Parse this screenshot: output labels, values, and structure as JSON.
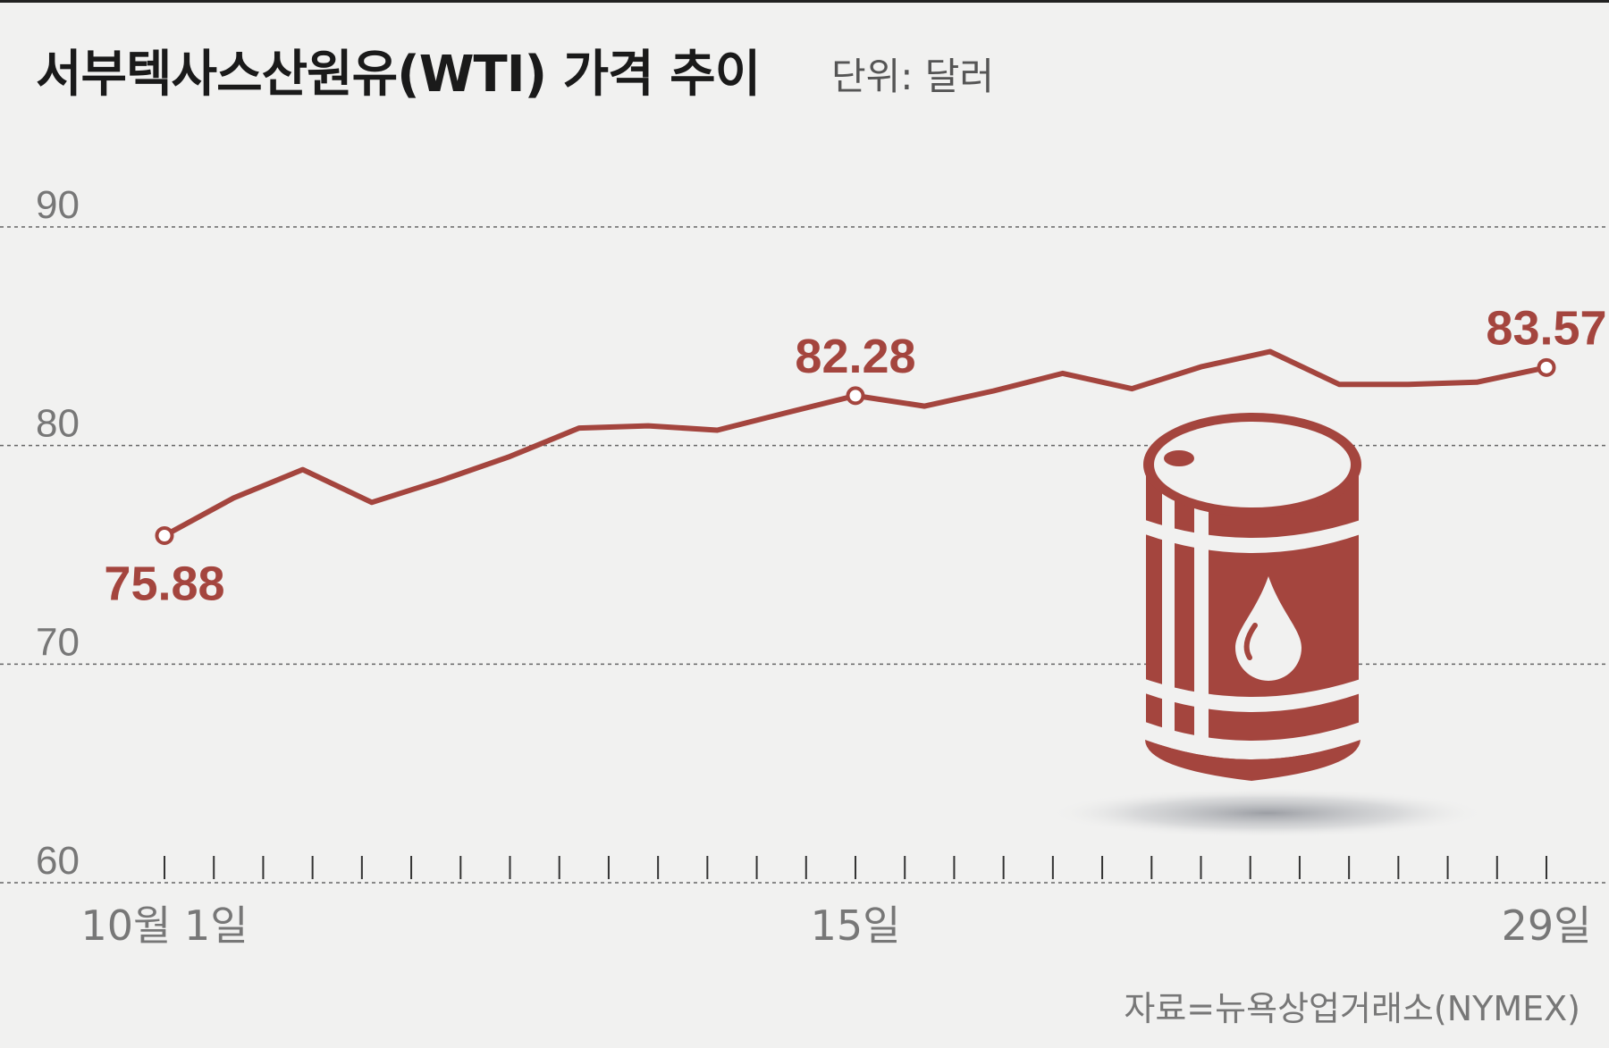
{
  "header": {
    "title": "서부텍사스산원유(WTI) 가격 추이",
    "unit": "단위: 달러"
  },
  "footer": {
    "source": "자료=뉴욕상업거래소(NYMEX)"
  },
  "colors": {
    "line": "#a4453e",
    "barrel": "#a4453e",
    "background": "#f1f1f0"
  },
  "chart_data": {
    "type": "line",
    "title": "서부텍사스산원유(WTI) 가격 추이",
    "ylabel": "단위: 달러",
    "xlabel": "",
    "ylim": [
      60,
      90
    ],
    "yticks": [
      60,
      70,
      80,
      90
    ],
    "xticks": [
      {
        "index": 0,
        "label": "10월 1일"
      },
      {
        "index": 14,
        "label": "15일"
      },
      {
        "index": 28,
        "label": "29일"
      }
    ],
    "x_count": 29,
    "grid": true,
    "series": [
      {
        "points": [
          {
            "i": 0,
            "v": 75.88
          },
          {
            "i": 1.4,
            "v": 77.6
          },
          {
            "i": 2.8,
            "v": 78.9
          },
          {
            "i": 4.2,
            "v": 77.4
          },
          {
            "i": 5.6,
            "v": 78.4
          },
          {
            "i": 7.0,
            "v": 79.5
          },
          {
            "i": 8.4,
            "v": 80.8
          },
          {
            "i": 9.8,
            "v": 80.9
          },
          {
            "i": 11.2,
            "v": 80.7
          },
          {
            "i": 12.6,
            "v": 81.5
          },
          {
            "i": 14.0,
            "v": 82.28
          },
          {
            "i": 15.4,
            "v": 81.8
          },
          {
            "i": 16.8,
            "v": 82.5
          },
          {
            "i": 18.2,
            "v": 83.3
          },
          {
            "i": 19.6,
            "v": 82.6
          },
          {
            "i": 21.0,
            "v": 83.6
          },
          {
            "i": 22.4,
            "v": 84.3
          },
          {
            "i": 23.8,
            "v": 82.8
          },
          {
            "i": 25.2,
            "v": 82.8
          },
          {
            "i": 26.6,
            "v": 82.9
          },
          {
            "i": 28.0,
            "v": 83.57
          }
        ]
      }
    ],
    "annotations": [
      {
        "i": 0,
        "v": 75.88,
        "label": "75.88",
        "pos": "below"
      },
      {
        "i": 14,
        "v": 82.28,
        "label": "82.28",
        "pos": "above"
      },
      {
        "i": 28,
        "v": 83.57,
        "label": "83.57",
        "pos": "above"
      }
    ]
  }
}
